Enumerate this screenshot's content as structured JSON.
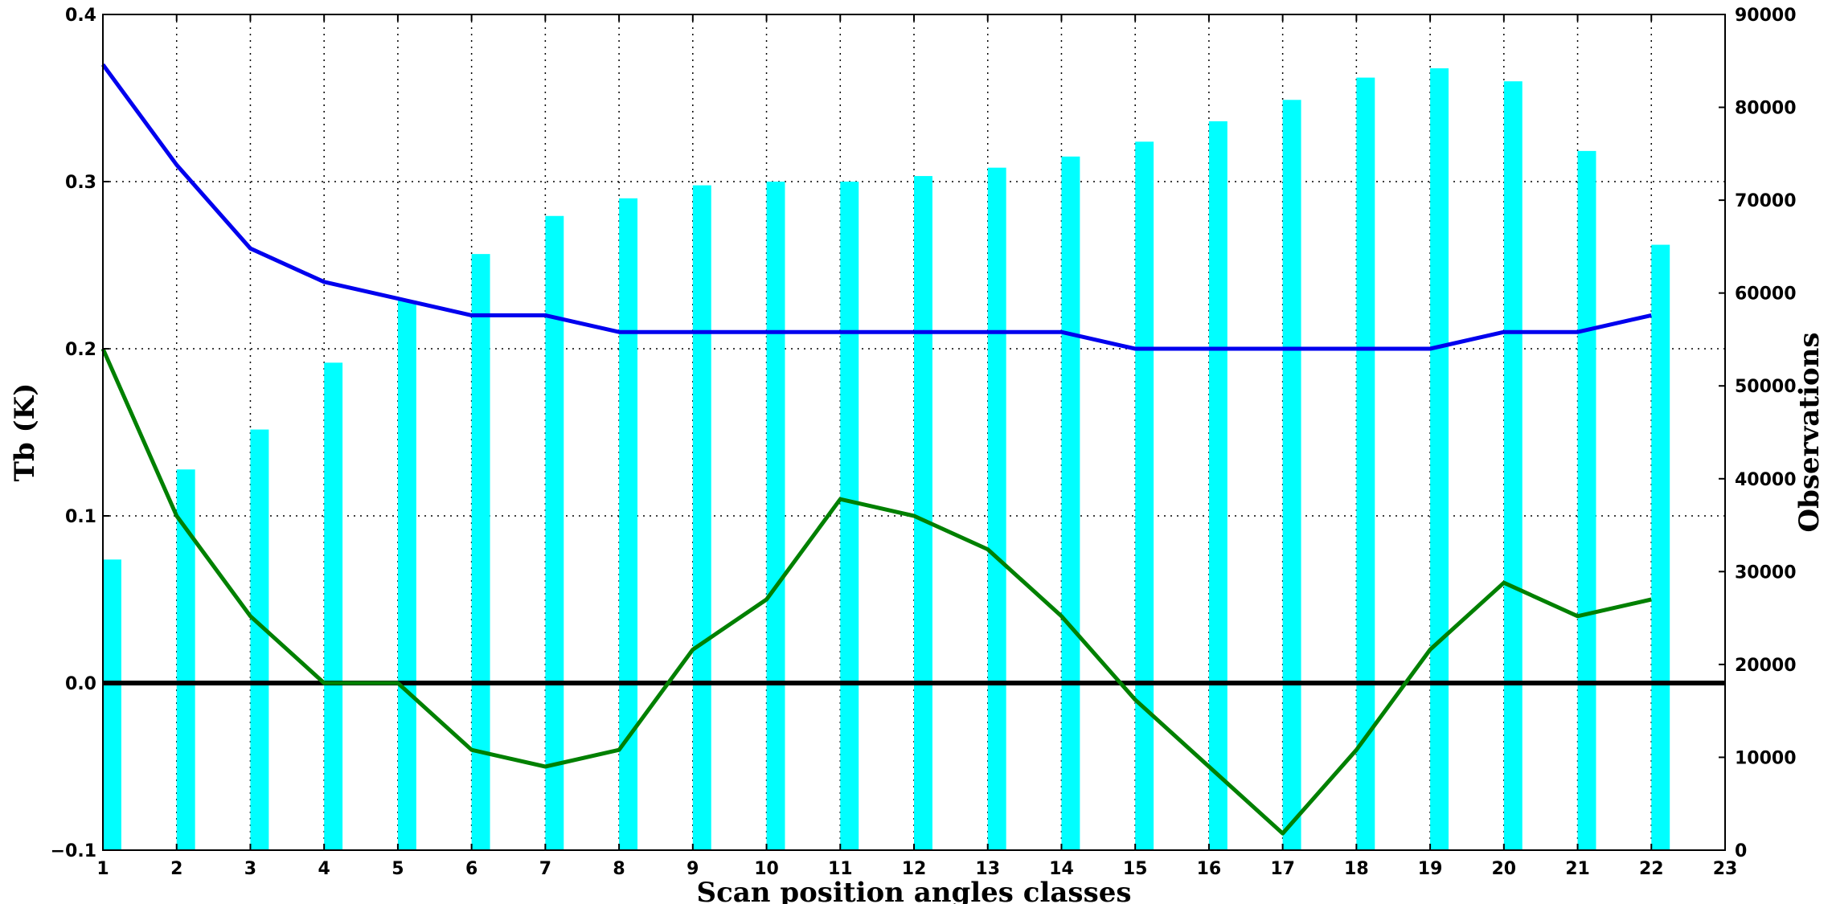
{
  "chart_data": {
    "type": "bar+line",
    "xlabel": "Scan position angles classes",
    "ylabel_left": "Tb (K)",
    "ylabel_right": "Observations",
    "xlim": [
      1,
      23
    ],
    "ylim_left": [
      -0.1,
      0.4
    ],
    "ylim_right": [
      0,
      90000
    ],
    "x_ticks": [
      1,
      2,
      3,
      4,
      5,
      6,
      7,
      8,
      9,
      10,
      11,
      12,
      13,
      14,
      15,
      16,
      17,
      18,
      19,
      20,
      21,
      22,
      23
    ],
    "y_ticks_left": [
      -0.1,
      0.0,
      0.1,
      0.2,
      0.3,
      0.4
    ],
    "y_ticks_left_labels": [
      "−0.1",
      "0.0",
      "0.1",
      "0.2",
      "0.3",
      "0.4"
    ],
    "y_ticks_right": [
      0,
      10000,
      20000,
      30000,
      40000,
      50000,
      60000,
      70000,
      80000,
      90000
    ],
    "grid": true,
    "zero_line": 0.0,
    "bars": {
      "axis": "right",
      "color": "#00ffff",
      "x": [
        1,
        2,
        3,
        4,
        5,
        6,
        7,
        8,
        9,
        10,
        11,
        12,
        13,
        14,
        15,
        16,
        17,
        18,
        19,
        20,
        21,
        22
      ],
      "values": [
        31300,
        41000,
        45300,
        52500,
        59200,
        64200,
        68300,
        70200,
        71600,
        72000,
        72000,
        72600,
        73500,
        74700,
        76300,
        78500,
        80800,
        83200,
        84200,
        82800,
        75300,
        65200
      ]
    },
    "series": [
      {
        "axis": "left",
        "color": "#0000ee",
        "x": [
          1,
          2,
          3,
          4,
          5,
          6,
          7,
          8,
          9,
          10,
          11,
          12,
          13,
          14,
          15,
          16,
          17,
          18,
          19,
          20,
          21,
          22
        ],
        "values": [
          0.37,
          0.31,
          0.26,
          0.24,
          0.23,
          0.22,
          0.22,
          0.21,
          0.21,
          0.21,
          0.21,
          0.21,
          0.21,
          0.21,
          0.2,
          0.2,
          0.2,
          0.2,
          0.2,
          0.21,
          0.21,
          0.22
        ]
      },
      {
        "axis": "left",
        "color": "#008000",
        "x": [
          1,
          2,
          3,
          4,
          5,
          6,
          7,
          8,
          9,
          10,
          11,
          12,
          13,
          14,
          15,
          16,
          17,
          18,
          19,
          20,
          21,
          22
        ],
        "values": [
          0.2,
          0.1,
          0.04,
          0.0,
          0.0,
          -0.04,
          -0.05,
          -0.04,
          0.02,
          0.05,
          0.11,
          0.1,
          0.08,
          0.04,
          -0.01,
          -0.05,
          -0.09,
          -0.04,
          0.02,
          0.06,
          0.04,
          0.05
        ]
      }
    ]
  }
}
